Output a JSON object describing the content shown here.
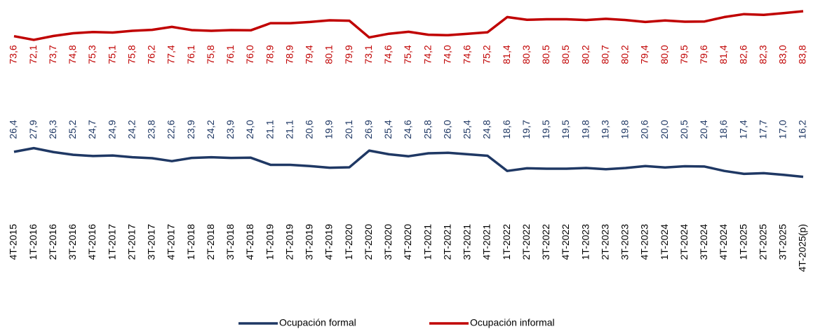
{
  "chart_data": {
    "type": "line",
    "categories": [
      "4T-2015",
      "1T-2016",
      "2T-2016",
      "3T-2016",
      "4T-2016",
      "1T-2017",
      "2T-2017",
      "3T-2017",
      "4T-2017",
      "1T-2018",
      "2T-2018",
      "3T-2018",
      "4T-2018",
      "1T-2019",
      "2T-2019",
      "3T-2019",
      "4T-2019",
      "1T-2020",
      "2T-2020",
      "3T-2020",
      "4T-2020",
      "1T-2021",
      "2T-2021",
      "3T-2021",
      "4T-2021",
      "1T-2022",
      "2T-2022",
      "3T-2022",
      "4T-2022",
      "1T-2023",
      "2T-2023",
      "3T-2023",
      "4T-2023",
      "1T-2024",
      "2T-2024",
      "3T-2024",
      "4T-2024",
      "1T-2025",
      "2T-2025",
      "3T-2025",
      "4T-2025(p)"
    ],
    "series": [
      {
        "name": "Ocupación formal",
        "color": "#1f3864",
        "values": [
          26.4,
          27.9,
          26.3,
          25.2,
          24.7,
          24.9,
          24.2,
          23.8,
          22.6,
          23.9,
          24.2,
          23.9,
          24.0,
          21.1,
          21.1,
          20.6,
          19.9,
          20.1,
          26.9,
          25.4,
          24.6,
          25.8,
          26.0,
          25.4,
          24.8,
          18.6,
          19.7,
          19.5,
          19.5,
          19.8,
          19.3,
          19.8,
          20.6,
          20.0,
          20.5,
          20.4,
          18.6,
          17.4,
          17.7,
          17.0,
          16.2
        ],
        "value_labels": [
          "26,4",
          "27,9",
          "26,3",
          "25,2",
          "24,7",
          "24,9",
          "24,2",
          "23,8",
          "22,6",
          "23,9",
          "24,2",
          "23,9",
          "24,0",
          "21,1",
          "21,1",
          "20,6",
          "19,9",
          "20,1",
          "26,9",
          "25,4",
          "24,6",
          "25,8",
          "26,0",
          "25,4",
          "24,8",
          "18,6",
          "19,7",
          "19,5",
          "19,5",
          "19,8",
          "19,3",
          "19,8",
          "20,6",
          "20,0",
          "20,5",
          "20,4",
          "18,6",
          "17,4",
          "17,7",
          "17,0",
          "16,2"
        ]
      },
      {
        "name": "Ocupación informal",
        "color": "#c00000",
        "values": [
          73.6,
          72.1,
          73.7,
          74.8,
          75.3,
          75.1,
          75.8,
          76.2,
          77.4,
          76.1,
          75.8,
          76.1,
          76.0,
          78.9,
          78.9,
          79.4,
          80.1,
          79.9,
          73.1,
          74.6,
          75.4,
          74.2,
          74.0,
          74.6,
          75.2,
          81.4,
          80.3,
          80.5,
          80.5,
          80.2,
          80.7,
          80.2,
          79.4,
          80.0,
          79.5,
          79.6,
          81.4,
          82.6,
          82.3,
          83.0,
          83.8
        ],
        "value_labels": [
          "73,6",
          "72,1",
          "73,7",
          "74,8",
          "75,3",
          "75,1",
          "75,8",
          "76,2",
          "77,4",
          "76,1",
          "75,8",
          "76,1",
          "76,0",
          "78,9",
          "78,9",
          "79,4",
          "80,1",
          "79,9",
          "73,1",
          "74,6",
          "75,4",
          "74,2",
          "74,0",
          "74,6",
          "75,2",
          "81,4",
          "80,3",
          "80,5",
          "80,5",
          "80,2",
          "80,7",
          "80,2",
          "79,4",
          "80,0",
          "79,5",
          "79,6",
          "81,4",
          "82,6",
          "82,3",
          "83,0",
          "83,8"
        ]
      }
    ],
    "legend": "bottom"
  }
}
